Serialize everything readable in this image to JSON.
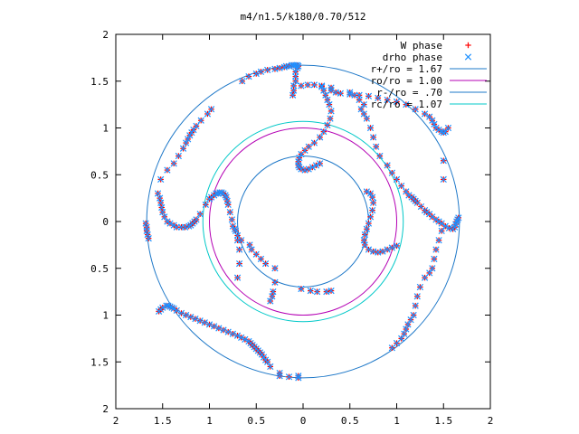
{
  "chart_data": {
    "type": "scatter",
    "title": "m4/n1.5/k180/0.70/512",
    "xlim": [
      -2,
      2
    ],
    "ylim": [
      -2,
      2
    ],
    "grid": false,
    "legend_position": "top-right",
    "x_tick_values": [
      -2,
      -1.5,
      -1,
      -0.5,
      0,
      0.5,
      1,
      1.5,
      2
    ],
    "x_tick_labels": [
      "2",
      "1.5",
      "1",
      "0.5",
      "0",
      "0.5",
      "1",
      "1.5",
      "2"
    ],
    "y_tick_values": [
      2,
      1.5,
      1,
      0.5,
      0,
      -0.5,
      -1,
      -1.5,
      -2
    ],
    "y_tick_labels": [
      "2",
      "1.5",
      "1",
      "0.5",
      "0",
      "0.5",
      "1",
      "1.5",
      "2"
    ],
    "legend": [
      {
        "label": "W phase",
        "kind": "marker",
        "marker": "plus",
        "color": "#ff0000"
      },
      {
        "label": "drho phase",
        "kind": "marker",
        "marker": "cross",
        "color": "#1e90ff"
      },
      {
        "label": "r+/ro = 1.67",
        "kind": "line",
        "color": "#1e78c8"
      },
      {
        "label": "ro/ro = 1.00",
        "kind": "line",
        "color": "#b400b4"
      },
      {
        "label": "r-/ro = .70",
        "kind": "line",
        "color": "#1e78c8"
      },
      {
        "label": "rc/ro = 1.07",
        "kind": "line",
        "color": "#00c8c8"
      }
    ],
    "circles": [
      {
        "name": "r+/ro = 1.67",
        "r": 1.67,
        "color": "#1e78c8"
      },
      {
        "name": "ro/ro = 1.00",
        "r": 1.0,
        "color": "#b400b4"
      },
      {
        "name": "r-/ro = .70",
        "r": 0.7,
        "color": "#1e78c8"
      },
      {
        "name": "rc/ro = 1.07",
        "r": 1.07,
        "color": "#00c8c8"
      }
    ],
    "series": [
      {
        "name": "W phase",
        "marker": "plus",
        "color": "#ff0000",
        "x": [
          -1.68,
          -1.67,
          -1.67,
          -1.66,
          -1.65,
          -1.55,
          -1.53,
          -1.52,
          -1.51,
          -1.5,
          -1.48,
          -1.45,
          -1.42,
          -1.38,
          -1.35,
          -1.3,
          -1.26,
          -1.22,
          -1.2,
          -1.18,
          -1.16,
          -1.14,
          -1.1,
          -1.04,
          -1.0,
          -0.98,
          -0.95,
          -0.93,
          -0.91,
          -0.89,
          -0.87,
          -0.85,
          -0.83,
          -0.82,
          -0.81,
          -0.8,
          -0.78,
          -0.76,
          -0.73,
          -0.7,
          -0.66,
          -0.57,
          -0.55,
          -0.5,
          -0.45,
          -0.4,
          -0.3,
          -1.52,
          -1.45,
          -1.38,
          -1.33,
          -1.28,
          -1.25,
          -1.23,
          -1.21,
          -1.19,
          -1.17,
          -1.14,
          -1.09,
          -1.02,
          -0.98,
          -0.65,
          -0.58,
          -0.5,
          -0.45,
          -0.38,
          -0.3,
          -0.25,
          -0.2,
          -0.18,
          -0.15,
          -0.12,
          -0.1,
          -0.08,
          -0.06,
          -0.05,
          -0.06,
          -0.08,
          -0.08,
          -0.08,
          -0.1,
          -0.1,
          -0.11,
          -0.02,
          0.05,
          0.12,
          0.2,
          0.3,
          0.5,
          0.55,
          0.6,
          0.65,
          0.62,
          0.65,
          0.68,
          0.72,
          0.75,
          0.78,
          0.82,
          0.9,
          0.95,
          1.0,
          1.05,
          1.1,
          1.13,
          1.16,
          1.18,
          1.2,
          1.22,
          1.26,
          1.3,
          1.32,
          1.35,
          1.38,
          1.42,
          1.45,
          1.48,
          1.52,
          1.56,
          1.6,
          1.62,
          1.63,
          1.64,
          1.65,
          1.66,
          1.5,
          1.5,
          1.48,
          1.45,
          1.42,
          1.4,
          1.38,
          1.35,
          1.3,
          1.25,
          1.22,
          1.2,
          1.18,
          1.15,
          1.12,
          1.1,
          1.08,
          1.05,
          1.0,
          0.95,
          0.3,
          0.35,
          0.4,
          0.5,
          0.6,
          0.7,
          0.8,
          0.9,
          1.0,
          1.1,
          1.2,
          1.3,
          1.35,
          1.38,
          1.4,
          1.42,
          1.45,
          1.48,
          1.5,
          1.52,
          1.55,
          0.2,
          0.22,
          0.24,
          0.26,
          0.28,
          0.3,
          0.29,
          0.26,
          0.22,
          0.18,
          0.12,
          0.06,
          0.02,
          -0.02,
          -0.04,
          -0.05,
          -0.05,
          -0.04,
          -0.02,
          0.02,
          0.06,
          0.1,
          0.14,
          0.18,
          -0.05,
          -0.25,
          -0.35,
          -0.38,
          -0.4,
          -0.42,
          -0.44,
          -0.46,
          -0.48,
          -0.5,
          -0.52,
          -0.54,
          -0.56,
          -0.58,
          -0.62,
          -0.66,
          -0.7,
          -0.75,
          -0.8,
          -0.85,
          -0.9,
          -0.95,
          -1.0,
          -1.05,
          -1.1,
          -1.15,
          -1.2,
          -1.25,
          -1.3,
          -1.35,
          -1.38,
          -1.4,
          -1.42,
          -1.44,
          -1.46,
          -1.5,
          -1.52,
          -1.54,
          -0.75,
          -0.72,
          -0.7,
          -0.68,
          -0.68,
          -0.7,
          -0.3,
          -0.32,
          -0.33,
          -0.35,
          -0.02,
          0.08,
          0.15,
          0.25,
          0.3,
          0.68,
          0.72,
          0.74,
          0.75,
          0.74,
          0.72,
          0.7,
          0.68,
          0.66,
          0.65,
          0.66,
          0.7,
          0.75,
          0.8,
          0.85,
          0.9,
          0.95,
          1.0,
          -0.25,
          -0.15,
          -0.05
        ],
        "y": [
          -0.02,
          -0.06,
          -0.1,
          -0.14,
          -0.18,
          0.3,
          0.25,
          0.2,
          0.15,
          0.1,
          0.05,
          0.0,
          -0.02,
          -0.04,
          -0.06,
          -0.06,
          -0.06,
          -0.05,
          -0.04,
          -0.02,
          0.0,
          0.02,
          0.08,
          0.18,
          0.24,
          0.26,
          0.28,
          0.3,
          0.3,
          0.31,
          0.31,
          0.3,
          0.28,
          0.26,
          0.22,
          0.18,
          0.1,
          0.02,
          -0.08,
          -0.15,
          -0.2,
          -0.25,
          -0.3,
          -0.35,
          -0.4,
          -0.45,
          -0.5,
          0.45,
          0.55,
          0.62,
          0.7,
          0.78,
          0.84,
          0.88,
          0.92,
          0.95,
          0.98,
          1.02,
          1.08,
          1.15,
          1.2,
          1.5,
          1.55,
          1.58,
          1.6,
          1.62,
          1.63,
          1.64,
          1.65,
          1.66,
          1.66,
          1.67,
          1.67,
          1.67,
          1.67,
          1.66,
          1.64,
          1.6,
          1.55,
          1.5,
          1.45,
          1.4,
          1.35,
          1.45,
          1.46,
          1.46,
          1.45,
          1.43,
          1.38,
          1.35,
          1.3,
          1.25,
          1.2,
          1.15,
          1.1,
          1.0,
          0.9,
          0.8,
          0.7,
          0.6,
          0.52,
          0.45,
          0.38,
          0.32,
          0.28,
          0.26,
          0.24,
          0.22,
          0.2,
          0.16,
          0.12,
          0.1,
          0.08,
          0.05,
          0.02,
          0.0,
          -0.02,
          -0.05,
          -0.07,
          -0.08,
          -0.06,
          -0.03,
          0.0,
          0.02,
          0.04,
          0.65,
          0.45,
          -0.1,
          -0.2,
          -0.3,
          -0.4,
          -0.5,
          -0.55,
          -0.6,
          -0.7,
          -0.8,
          -0.9,
          -1.0,
          -1.05,
          -1.1,
          -1.15,
          -1.2,
          -1.25,
          -1.3,
          -1.35,
          1.4,
          1.38,
          1.37,
          1.36,
          1.35,
          1.34,
          1.32,
          1.3,
          1.28,
          1.25,
          1.2,
          1.15,
          1.12,
          1.08,
          1.04,
          1.0,
          0.98,
          0.96,
          0.95,
          0.96,
          1.0,
          1.44,
          1.4,
          1.35,
          1.3,
          1.25,
          1.18,
          1.1,
          1.03,
          0.96,
          0.9,
          0.84,
          0.8,
          0.76,
          0.72,
          0.68,
          0.64,
          0.6,
          0.58,
          0.56,
          0.55,
          0.56,
          0.58,
          0.6,
          0.62,
          -1.65,
          -1.62,
          -1.55,
          -1.5,
          -1.48,
          -1.45,
          -1.42,
          -1.4,
          -1.38,
          -1.36,
          -1.34,
          -1.32,
          -1.3,
          -1.28,
          -1.26,
          -1.24,
          -1.22,
          -1.2,
          -1.18,
          -1.16,
          -1.14,
          -1.12,
          -1.1,
          -1.08,
          -1.06,
          -1.04,
          -1.02,
          -1.0,
          -0.98,
          -0.95,
          -0.93,
          -0.92,
          -0.91,
          -0.9,
          -0.9,
          -0.92,
          -0.94,
          -0.96,
          -0.05,
          -0.1,
          -0.2,
          -0.3,
          -0.45,
          -0.6,
          -0.65,
          -0.75,
          -0.8,
          -0.85,
          -0.72,
          -0.74,
          -0.75,
          -0.75,
          -0.74,
          0.32,
          0.3,
          0.26,
          0.2,
          0.12,
          0.05,
          -0.02,
          -0.08,
          -0.14,
          -0.2,
          -0.25,
          -0.3,
          -0.32,
          -0.33,
          -0.32,
          -0.3,
          -0.28,
          -0.26,
          -1.65,
          -1.66,
          -1.67
        ]
      },
      {
        "name": "drho phase",
        "marker": "cross",
        "color": "#1e90ff",
        "x": [
          -1.68,
          -1.67,
          -1.67,
          -1.66,
          -1.65,
          -1.55,
          -1.53,
          -1.52,
          -1.51,
          -1.5,
          -1.48,
          -1.45,
          -1.42,
          -1.38,
          -1.35,
          -1.3,
          -1.26,
          -1.22,
          -1.2,
          -1.18,
          -1.16,
          -1.14,
          -1.1,
          -1.04,
          -1.0,
          -0.98,
          -0.95,
          -0.93,
          -0.91,
          -0.89,
          -0.87,
          -0.85,
          -0.83,
          -0.82,
          -0.81,
          -0.8,
          -0.78,
          -0.76,
          -0.73,
          -0.7,
          -0.66,
          -0.57,
          -0.55,
          -0.5,
          -0.45,
          -0.4,
          -0.3,
          -1.52,
          -1.45,
          -1.38,
          -1.33,
          -1.28,
          -1.25,
          -1.23,
          -1.21,
          -1.19,
          -1.17,
          -1.14,
          -1.09,
          -1.02,
          -0.98,
          -0.65,
          -0.58,
          -0.5,
          -0.45,
          -0.38,
          -0.3,
          -0.25,
          -0.2,
          -0.18,
          -0.15,
          -0.12,
          -0.1,
          -0.08,
          -0.06,
          -0.05,
          -0.06,
          -0.08,
          -0.08,
          -0.08,
          -0.1,
          -0.1,
          -0.11,
          -0.02,
          0.05,
          0.12,
          0.2,
          0.3,
          0.5,
          0.55,
          0.6,
          0.65,
          0.62,
          0.65,
          0.68,
          0.72,
          0.75,
          0.78,
          0.82,
          0.9,
          0.95,
          1.0,
          1.05,
          1.1,
          1.13,
          1.16,
          1.18,
          1.2,
          1.22,
          1.26,
          1.3,
          1.32,
          1.35,
          1.38,
          1.42,
          1.45,
          1.48,
          1.52,
          1.56,
          1.6,
          1.62,
          1.63,
          1.64,
          1.65,
          1.66,
          1.5,
          1.5,
          1.48,
          1.45,
          1.42,
          1.4,
          1.38,
          1.35,
          1.3,
          1.25,
          1.22,
          1.2,
          1.18,
          1.15,
          1.12,
          1.1,
          1.08,
          1.05,
          1.0,
          0.95,
          0.3,
          0.35,
          0.4,
          0.5,
          0.6,
          0.7,
          0.8,
          0.9,
          1.0,
          1.1,
          1.2,
          1.3,
          1.35,
          1.38,
          1.4,
          1.42,
          1.45,
          1.48,
          1.5,
          1.52,
          1.55,
          0.2,
          0.22,
          0.24,
          0.26,
          0.28,
          0.3,
          0.29,
          0.26,
          0.22,
          0.18,
          0.12,
          0.06,
          0.02,
          -0.02,
          -0.04,
          -0.05,
          -0.05,
          -0.04,
          -0.02,
          0.02,
          0.06,
          0.1,
          0.14,
          0.18,
          -0.05,
          -0.25,
          -0.35,
          -0.38,
          -0.4,
          -0.42,
          -0.44,
          -0.46,
          -0.48,
          -0.5,
          -0.52,
          -0.54,
          -0.56,
          -0.58,
          -0.62,
          -0.66,
          -0.7,
          -0.75,
          -0.8,
          -0.85,
          -0.9,
          -0.95,
          -1.0,
          -1.05,
          -1.1,
          -1.15,
          -1.2,
          -1.25,
          -1.3,
          -1.35,
          -1.38,
          -1.4,
          -1.42,
          -1.44,
          -1.46,
          -1.5,
          -1.52,
          -1.54,
          -0.75,
          -0.72,
          -0.7,
          -0.68,
          -0.68,
          -0.7,
          -0.3,
          -0.32,
          -0.33,
          -0.35,
          -0.02,
          0.08,
          0.15,
          0.25,
          0.3,
          0.68,
          0.72,
          0.74,
          0.75,
          0.74,
          0.72,
          0.7,
          0.68,
          0.66,
          0.65,
          0.66,
          0.7,
          0.75,
          0.8,
          0.85,
          0.9,
          0.95,
          1.0,
          -0.25,
          -0.15,
          -0.05
        ],
        "y": [
          -0.02,
          -0.06,
          -0.1,
          -0.14,
          -0.18,
          0.3,
          0.25,
          0.2,
          0.15,
          0.1,
          0.05,
          0.0,
          -0.02,
          -0.04,
          -0.06,
          -0.06,
          -0.06,
          -0.05,
          -0.04,
          -0.02,
          0.0,
          0.02,
          0.08,
          0.18,
          0.24,
          0.26,
          0.28,
          0.3,
          0.3,
          0.31,
          0.31,
          0.3,
          0.28,
          0.26,
          0.22,
          0.18,
          0.1,
          0.02,
          -0.08,
          -0.15,
          -0.2,
          -0.25,
          -0.3,
          -0.35,
          -0.4,
          -0.45,
          -0.5,
          0.45,
          0.55,
          0.62,
          0.7,
          0.78,
          0.84,
          0.88,
          0.92,
          0.95,
          0.98,
          1.02,
          1.08,
          1.15,
          1.2,
          1.5,
          1.55,
          1.58,
          1.6,
          1.62,
          1.63,
          1.64,
          1.65,
          1.66,
          1.66,
          1.67,
          1.67,
          1.67,
          1.67,
          1.66,
          1.64,
          1.6,
          1.55,
          1.5,
          1.45,
          1.4,
          1.35,
          1.45,
          1.46,
          1.46,
          1.45,
          1.43,
          1.38,
          1.35,
          1.3,
          1.25,
          1.2,
          1.15,
          1.1,
          1.0,
          0.9,
          0.8,
          0.7,
          0.6,
          0.52,
          0.45,
          0.38,
          0.32,
          0.28,
          0.26,
          0.24,
          0.22,
          0.2,
          0.16,
          0.12,
          0.1,
          0.08,
          0.05,
          0.02,
          0.0,
          -0.02,
          -0.05,
          -0.07,
          -0.08,
          -0.06,
          -0.03,
          0.0,
          0.02,
          0.04,
          0.65,
          0.45,
          -0.1,
          -0.2,
          -0.3,
          -0.4,
          -0.5,
          -0.55,
          -0.6,
          -0.7,
          -0.8,
          -0.9,
          -1.0,
          -1.05,
          -1.1,
          -1.15,
          -1.2,
          -1.25,
          -1.3,
          -1.35,
          1.4,
          1.38,
          1.37,
          1.36,
          1.35,
          1.34,
          1.32,
          1.3,
          1.28,
          1.25,
          1.2,
          1.15,
          1.12,
          1.08,
          1.04,
          1.0,
          0.98,
          0.96,
          0.95,
          0.96,
          1.0,
          1.44,
          1.4,
          1.35,
          1.3,
          1.25,
          1.18,
          1.1,
          1.03,
          0.96,
          0.9,
          0.84,
          0.8,
          0.76,
          0.72,
          0.68,
          0.64,
          0.6,
          0.58,
          0.56,
          0.55,
          0.56,
          0.58,
          0.6,
          0.62,
          -1.65,
          -1.62,
          -1.55,
          -1.5,
          -1.48,
          -1.45,
          -1.42,
          -1.4,
          -1.38,
          -1.36,
          -1.34,
          -1.32,
          -1.3,
          -1.28,
          -1.26,
          -1.24,
          -1.22,
          -1.2,
          -1.18,
          -1.16,
          -1.14,
          -1.12,
          -1.1,
          -1.08,
          -1.06,
          -1.04,
          -1.02,
          -1.0,
          -0.98,
          -0.95,
          -0.93,
          -0.92,
          -0.91,
          -0.9,
          -0.9,
          -0.92,
          -0.94,
          -0.96,
          -0.05,
          -0.1,
          -0.2,
          -0.3,
          -0.45,
          -0.6,
          -0.65,
          -0.75,
          -0.8,
          -0.85,
          -0.72,
          -0.74,
          -0.75,
          -0.75,
          -0.74,
          0.32,
          0.3,
          0.26,
          0.2,
          0.12,
          0.05,
          -0.02,
          -0.08,
          -0.14,
          -0.2,
          -0.25,
          -0.3,
          -0.32,
          -0.33,
          -0.32,
          -0.3,
          -0.28,
          -0.26,
          -1.65,
          -1.66,
          -1.67
        ]
      }
    ]
  }
}
